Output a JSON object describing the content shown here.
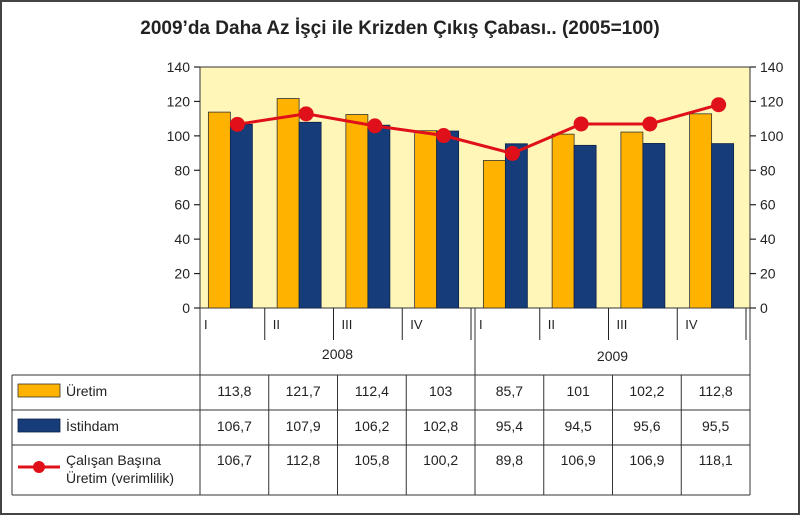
{
  "chart_data": {
    "type": "bar",
    "title": "2009’da Daha Az İşçi ile Krizden Çıkış Çabası.. (2005=100)",
    "quarters": [
      "I",
      "II",
      "III",
      "IV",
      "I",
      "II",
      "III",
      "IV"
    ],
    "years": [
      "2008",
      "2009"
    ],
    "ylim": [
      0,
      140
    ],
    "yticks": [
      "0",
      "20",
      "40",
      "60",
      "80",
      "100",
      "120",
      "140"
    ],
    "legend_placement": "table-left",
    "grid": false,
    "series": [
      {
        "name": "Üretim",
        "type": "bar",
        "color": "#FFB300",
        "values": [
          113.8,
          121.7,
          112.4,
          103,
          85.7,
          101,
          102.2,
          112.8
        ],
        "labels": [
          "113,8",
          "121,7",
          "112,4",
          "103",
          "85,7",
          "101",
          "102,2",
          "112,8"
        ]
      },
      {
        "name": "İstihdam",
        "type": "bar",
        "color": "#163C7A",
        "values": [
          106.7,
          107.9,
          106.2,
          102.8,
          95.4,
          94.5,
          95.6,
          95.5
        ],
        "labels": [
          "106,7",
          "107,9",
          "106,2",
          "102,8",
          "95,4",
          "94,5",
          "95,6",
          "95,5"
        ]
      },
      {
        "name": "Çalışan Başına Üretim (verimlilik)",
        "type": "line",
        "color": "#E0101A",
        "name_lines": [
          "Çalışan Başına",
          "Üretim (verimlilik)"
        ],
        "values": [
          106.7,
          112.8,
          105.8,
          100.2,
          89.8,
          106.9,
          106.9,
          118.1
        ],
        "labels": [
          "106,7",
          "112,8",
          "105,8",
          "100,2",
          "89,8",
          "106,9",
          "106,9",
          "118,1"
        ]
      }
    ],
    "plot_background": "#FFF6B8"
  }
}
